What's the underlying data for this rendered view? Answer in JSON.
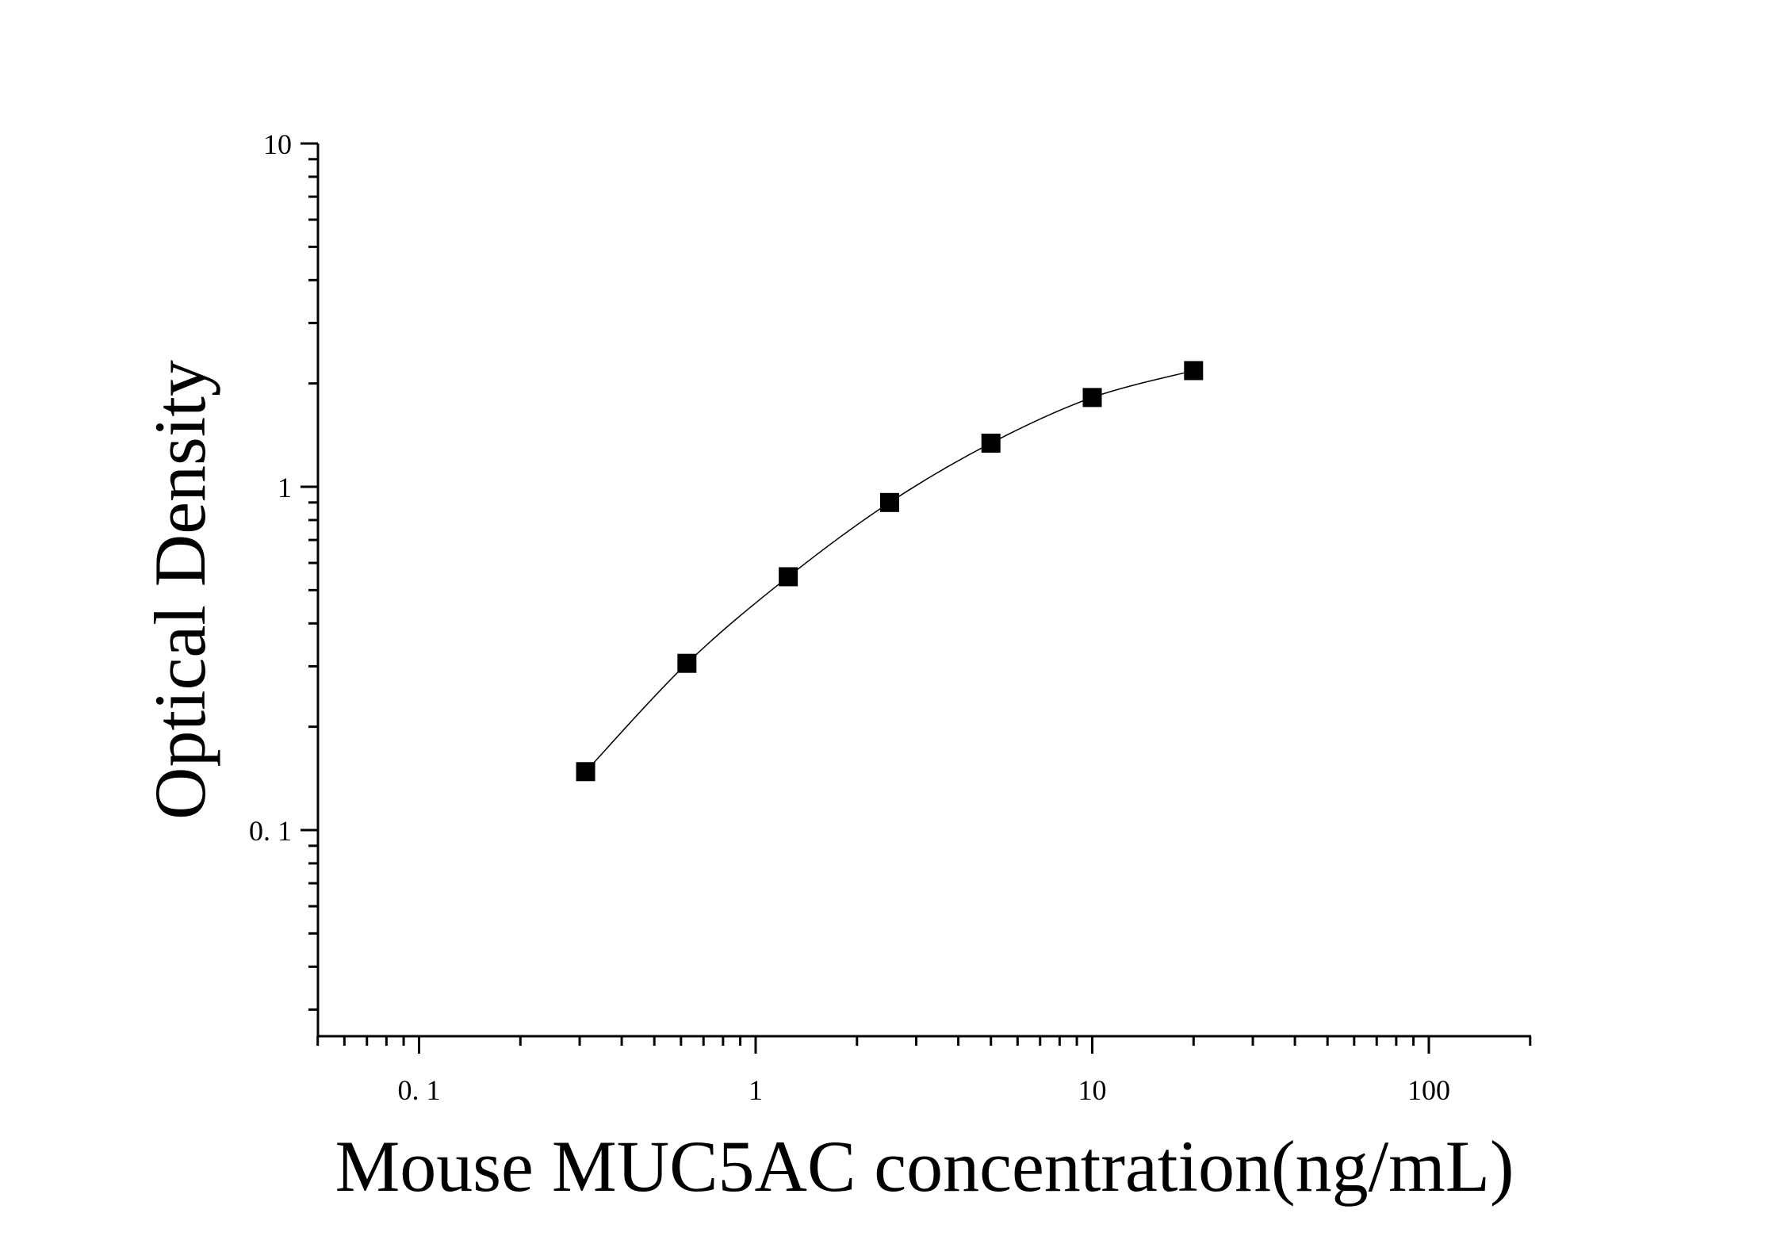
{
  "chart_data": {
    "type": "scatter",
    "title": "",
    "xlabel": "Mouse MUC5AC concentration(ng/mL)",
    "ylabel": "Optical Density",
    "x_scale": "log",
    "y_scale": "log",
    "xlim": [
      0.05,
      200
    ],
    "ylim": [
      0.025,
      10
    ],
    "x_tick_labels": [
      "0. 1",
      "1",
      "10",
      "100"
    ],
    "y_tick_labels": [
      "0. 1",
      "1",
      "10"
    ],
    "grid": false,
    "legend": "none",
    "marker": "square",
    "marker_color": "#000000",
    "series": [
      {
        "x": [
          0.3125,
          0.625,
          1.25,
          2.5,
          5,
          10,
          20
        ],
        "y": [
          0.148,
          0.306,
          0.547,
          0.9,
          1.34,
          1.82,
          2.18
        ]
      }
    ],
    "fit_curve": true
  }
}
